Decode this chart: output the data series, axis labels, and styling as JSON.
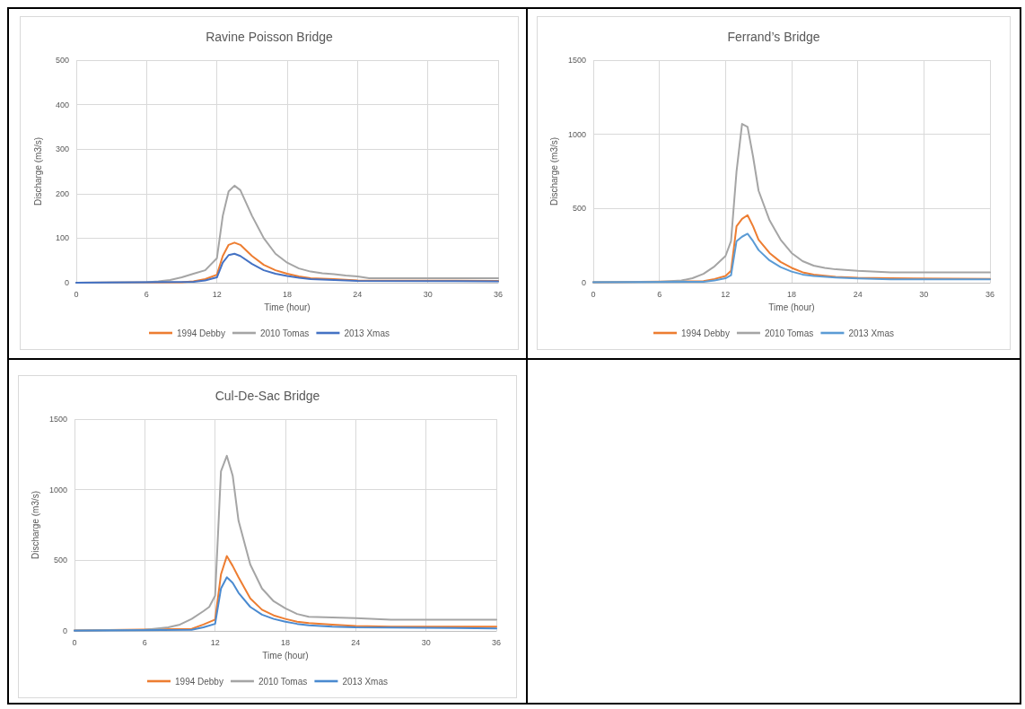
{
  "chart_data": [
    {
      "type": "line",
      "title": "Ravine Poisson Bridge",
      "xlabel": "Time (hour)",
      "ylabel": "Discharge (m3/s)",
      "xlim": [
        0,
        36
      ],
      "xticks": [
        0,
        6,
        12,
        18,
        24,
        30,
        36
      ],
      "ylim": [
        0,
        500
      ],
      "yticks": [
        0,
        100,
        200,
        300,
        400,
        500
      ],
      "grid": true,
      "legend": "bottom",
      "marker": "none",
      "line_style": "solid",
      "series": [
        {
          "name": "1994 Debby",
          "color": "#ed7d31",
          "x": [
            0,
            9,
            10,
            11,
            12,
            12.5,
            13,
            13.5,
            14,
            15,
            16,
            17,
            18,
            19,
            20,
            22,
            24,
            36
          ],
          "values": [
            0,
            1,
            3,
            8,
            18,
            60,
            85,
            90,
            85,
            60,
            40,
            28,
            20,
            14,
            10,
            8,
            5,
            4
          ]
        },
        {
          "name": "2010 Tomas",
          "color": "#a5a5a5",
          "x": [
            0,
            6,
            7,
            8,
            9,
            10,
            11,
            12,
            12.5,
            13,
            13.5,
            14,
            15,
            16,
            17,
            18,
            19,
            20,
            21,
            22,
            23,
            24,
            25,
            30,
            36
          ],
          "values": [
            0,
            1,
            3,
            6,
            12,
            20,
            28,
            55,
            150,
            205,
            218,
            208,
            150,
            100,
            65,
            45,
            32,
            25,
            21,
            19,
            16,
            14,
            10,
            10,
            10
          ]
        },
        {
          "name": "2013 Xmas",
          "color": "#4472c4",
          "x": [
            0,
            10,
            11,
            12,
            12.5,
            13,
            13.5,
            14,
            15,
            16,
            17,
            18,
            19,
            20,
            22,
            24,
            36
          ],
          "values": [
            0,
            2,
            5,
            12,
            45,
            62,
            65,
            60,
            42,
            28,
            20,
            15,
            11,
            8,
            6,
            4,
            3
          ]
        }
      ]
    },
    {
      "type": "line",
      "title": "Ferrand’s Bridge",
      "xlabel": "Time (hour)",
      "ylabel": "Discharge (m3/s)",
      "xlim": [
        0,
        36
      ],
      "xticks": [
        0,
        6,
        12,
        18,
        24,
        30,
        36
      ],
      "ylim": [
        0,
        1500
      ],
      "yticks": [
        0,
        500,
        1000,
        1500
      ],
      "grid": true,
      "legend": "bottom",
      "marker": "none",
      "line_style": "solid",
      "series": [
        {
          "name": "1994 Debby",
          "color": "#ed7d31",
          "x": [
            0,
            10,
            11,
            12,
            12.5,
            13,
            13.5,
            14,
            14.5,
            15,
            16,
            17,
            18,
            19,
            20,
            22,
            24,
            27,
            36
          ],
          "values": [
            3,
            10,
            25,
            45,
            80,
            380,
            430,
            455,
            380,
            290,
            200,
            140,
            100,
            70,
            55,
            40,
            33,
            30,
            25
          ]
        },
        {
          "name": "2010 Tomas",
          "color": "#a5a5a5",
          "x": [
            0,
            6,
            8,
            9,
            10,
            11,
            12,
            12.5,
            13,
            13.5,
            14,
            14.5,
            15,
            16,
            17,
            18,
            19,
            20,
            21,
            22,
            24,
            27,
            36
          ],
          "values": [
            5,
            6,
            15,
            30,
            60,
            110,
            180,
            280,
            750,
            1070,
            1050,
            850,
            620,
            420,
            290,
            200,
            145,
            115,
            100,
            90,
            80,
            70,
            70
          ]
        },
        {
          "name": "2013 Xmas",
          "color": "#5b9bd5",
          "x": [
            0,
            10,
            11,
            12,
            12.5,
            13,
            13.5,
            14,
            14.5,
            15,
            16,
            17,
            18,
            19,
            20,
            22,
            24,
            27,
            36
          ],
          "values": [
            3,
            6,
            15,
            30,
            50,
            280,
            310,
            330,
            280,
            220,
            150,
            105,
            75,
            55,
            45,
            35,
            28,
            22,
            22
          ]
        }
      ]
    },
    {
      "type": "line",
      "title": "Cul-De-Sac Bridge",
      "xlabel": "Time (hour)",
      "ylabel": "Discharge (m3/s)",
      "xlim": [
        0,
        36
      ],
      "xticks": [
        0,
        6,
        12,
        18,
        24,
        30,
        36
      ],
      "ylim": [
        0,
        1500
      ],
      "yticks": [
        0,
        500,
        1000,
        1500
      ],
      "grid": true,
      "legend": "bottom",
      "marker": "none",
      "line_style": "solid",
      "series": [
        {
          "name": "1994 Debby",
          "color": "#ed7d31",
          "x": [
            0,
            10,
            11,
            12,
            12.5,
            13,
            13.5,
            14,
            15,
            16,
            17,
            18,
            19,
            20,
            22,
            24,
            27,
            36
          ],
          "values": [
            3,
            15,
            45,
            80,
            400,
            530,
            460,
            380,
            230,
            150,
            110,
            85,
            65,
            55,
            45,
            35,
            30,
            30
          ]
        },
        {
          "name": "2010 Tomas",
          "color": "#a5a5a5",
          "x": [
            0,
            6,
            8,
            9,
            10,
            11,
            11.5,
            12,
            12.5,
            13,
            13.5,
            14,
            15,
            16,
            17,
            18,
            19,
            20,
            22,
            24,
            27,
            36
          ],
          "values": [
            5,
            8,
            25,
            45,
            85,
            140,
            170,
            250,
            1130,
            1240,
            1100,
            780,
            470,
            300,
            210,
            160,
            120,
            100,
            95,
            90,
            80,
            80
          ]
        },
        {
          "name": "2013 Xmas",
          "color": "#4a8ad0",
          "x": [
            0,
            10,
            11,
            12,
            12.5,
            13,
            13.5,
            14,
            15,
            16,
            17,
            18,
            19,
            20,
            22,
            24,
            36
          ],
          "values": [
            2,
            8,
            25,
            50,
            300,
            380,
            340,
            270,
            170,
            115,
            85,
            65,
            50,
            40,
            30,
            25,
            18
          ]
        }
      ]
    }
  ]
}
